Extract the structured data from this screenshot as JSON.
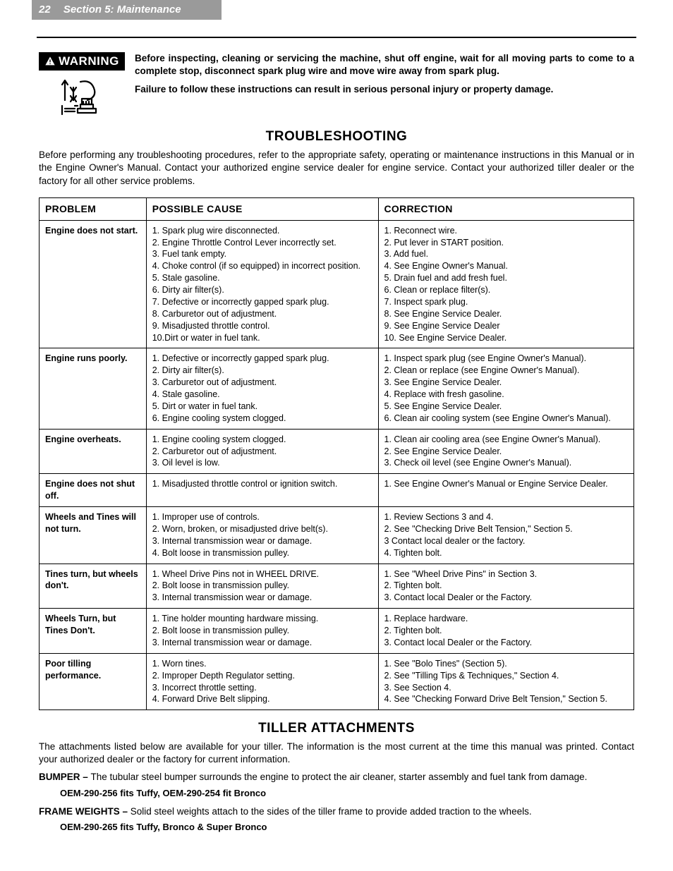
{
  "header": {
    "page_number": "22",
    "section_label": "Section 5: Maintenance"
  },
  "warning": {
    "badge_label": "WARNING",
    "paragraphs": [
      "Before inspecting, cleaning or servicing the machine, shut off engine, wait for all moving parts to come to a complete stop, disconnect spark plug wire and move wire away from spark plug.",
      "Failure to follow these instructions can result in serious personal injury or property damage."
    ]
  },
  "troubleshooting": {
    "title": "TROUBLESHOOTING",
    "intro": "Before performing any troubleshooting procedures, refer to the appropriate safety, operating or maintenance instructions in this Manual or in the Engine Owner's Manual.  Contact your authorized engine service dealer for engine service.  Contact your authorized tiller dealer or the factory for all other service problems.",
    "columns": [
      "PROBLEM",
      "POSSIBLE CAUSE",
      "CORRECTION"
    ],
    "rows": [
      {
        "problem": "Engine does not start.",
        "cause": "1. Spark plug wire disconnected.\n2. Engine Throttle Control Lever incorrectly set.\n3. Fuel tank empty.\n4. Choke control (if so equipped) in incorrect position.\n5. Stale gasoline.\n6. Dirty air filter(s).\n7. Defective or incorrectly gapped spark plug.\n8. Carburetor out of adjustment.\n9. Misadjusted throttle control.\n10.Dirt or water in fuel tank.",
        "correction": "1. Reconnect wire.\n2. Put lever in START position.\n3. Add fuel.\n4. See Engine Owner's Manual.\n5. Drain fuel and add fresh fuel.\n6. Clean or replace filter(s).\n7. Inspect spark plug.\n8. See Engine Service Dealer.\n9. See Engine Service Dealer\n10. See Engine Service Dealer."
      },
      {
        "problem": "Engine runs poorly.",
        "cause": "1. Defective or incorrectly gapped spark plug.\n2. Dirty air filter(s).\n3. Carburetor out of adjustment.\n4. Stale gasoline.\n5. Dirt or water in fuel tank.\n6. Engine cooling system clogged.",
        "correction": "1. Inspect spark plug (see Engine Owner's Manual).\n2. Clean or replace (see Engine Owner's Manual).\n3. See Engine Service Dealer.\n4. Replace with fresh gasoline.\n5. See Engine Service Dealer.\n6. Clean air cooling system (see Engine Owner's Manual)."
      },
      {
        "problem": "Engine overheats.",
        "cause": "1. Engine cooling system clogged.\n2. Carburetor out of adjustment.\n3. Oil level is low.",
        "correction": "1. Clean air cooling area (see Engine Owner's Manual).\n2. See Engine Service Dealer.\n3. Check oil level (see Engine Owner's Manual)."
      },
      {
        "problem": "Engine does not shut off.",
        "cause": "1. Misadjusted throttle control or ignition switch.",
        "correction": "1. See Engine Owner's Manual or Engine Service Dealer."
      },
      {
        "problem": "Wheels and Tines will not turn.",
        "cause": "1. Improper use of controls.\n2. Worn, broken, or misadjusted drive belt(s).\n3. Internal transmission wear or damage.\n4. Bolt loose in transmission pulley.",
        "correction": "1. Review Sections 3 and 4.\n2. See \"Checking Drive Belt Tension,\" Section 5.\n3  Contact local dealer or the factory.\n4. Tighten bolt."
      },
      {
        "problem": "Tines turn, but wheels don't.",
        "cause": "1. Wheel Drive Pins not in WHEEL DRIVE.\n2. Bolt loose in transmission pulley.\n3. Internal transmission wear or damage.",
        "correction": "1. See \"Wheel Drive Pins\" in Section 3.\n2. Tighten bolt.\n3. Contact local Dealer or the Factory."
      },
      {
        "problem": "Wheels Turn, but Tines Don't.",
        "cause": "1. Tine holder mounting hardware missing.\n2. Bolt loose in transmission pulley.\n3. Internal transmission wear or damage.",
        "correction": "1. Replace hardware.\n2. Tighten bolt.\n3. Contact local Dealer or the Factory."
      },
      {
        "problem": "Poor tilling performance.",
        "cause": "1. Worn tines.\n2. Improper Depth Regulator setting.\n3. Incorrect throttle setting.\n4. Forward Drive Belt slipping.",
        "correction": "1. See \"Bolo Tines\" (Section 5).\n2. See \"Tilling Tips & Techniques,\" Section 4.\n3. See Section 4.\n4. See \"Checking Forward Drive Belt Tension,\" Section 5."
      }
    ]
  },
  "attachments": {
    "title": "TILLER ATTACHMENTS",
    "intro": "The attachments listed below are available for your tiller.  The information is the most current at the time this manual was printed. Contact your authorized dealer or the factory for current information.",
    "items": [
      {
        "lead": "BUMPER – ",
        "text": "The tubular steel bumper surrounds the engine to protect the air cleaner, starter assembly and fuel tank from damage.",
        "part": "OEM-290-256 fits Tuffy, OEM-290-254 fit Bronco"
      },
      {
        "lead": "FRAME WEIGHTS – ",
        "text": "Solid steel weights attach to the sides of the tiller frame to provide added traction to the wheels.",
        "part": "OEM-290-265 fits Tuffy, Bronco & Super Bronco"
      }
    ]
  },
  "colors": {
    "header_bg": "#9a9a9a",
    "header_text": "#ffffff",
    "body_text": "#000000",
    "border": "#000000"
  }
}
